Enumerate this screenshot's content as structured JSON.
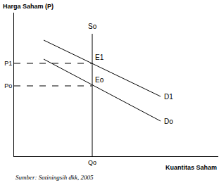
{
  "chart_data": {
    "type": "line",
    "y_label": "Harga Saham (P)",
    "x_label": "Kuantitas Saham",
    "source": "Sumber: Satiningsih dkk, 2005",
    "color": "#000000",
    "grid": false,
    "xlim": [
      0,
      290
    ],
    "ylim": [
      0,
      204
    ],
    "xticks": [
      {
        "value": 111,
        "label": "Qo"
      }
    ],
    "yticks": [
      {
        "value": 100,
        "label": "Po"
      },
      {
        "value": 132,
        "label": "P1"
      }
    ],
    "series": [
      {
        "name": "So",
        "x": [
          111,
          111
        ],
        "values": [
          0,
          174
        ]
      },
      {
        "name": "D1",
        "x": [
          42,
          208
        ],
        "values": [
          165,
          85
        ]
      },
      {
        "name": "Do",
        "x": [
          42,
          208
        ],
        "values": [
          138,
          50
        ]
      }
    ],
    "points": [
      {
        "label": "E1",
        "x": 111,
        "y": 132,
        "line_style": "dashed"
      },
      {
        "label": "Eo",
        "x": 111,
        "y": 100,
        "line_style": "dashed"
      }
    ]
  }
}
